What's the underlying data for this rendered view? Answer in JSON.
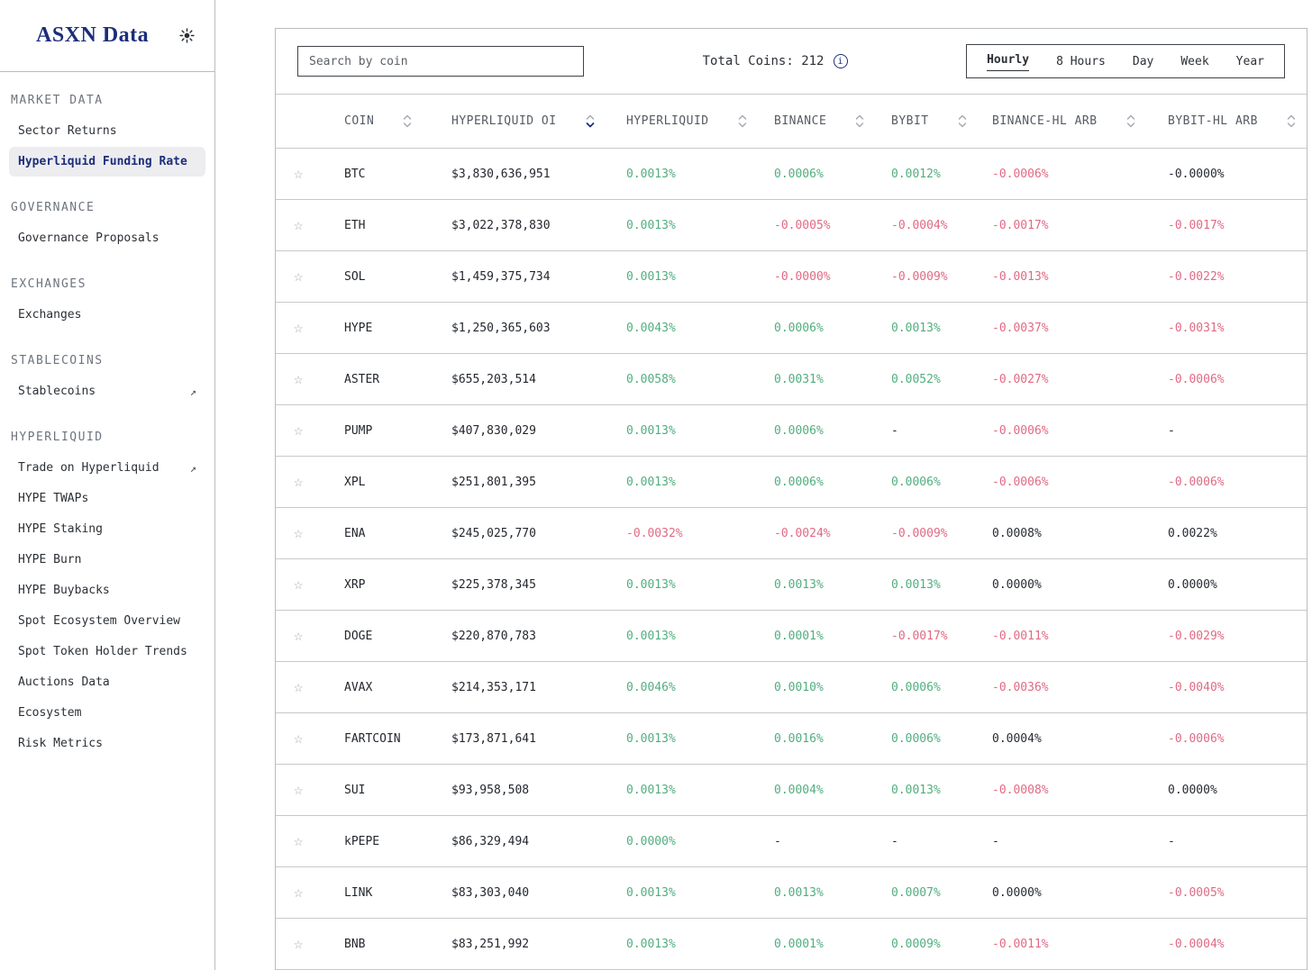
{
  "sidebar": {
    "logo": "ASXN Data",
    "theme_icon": "sun-icon",
    "sections": [
      {
        "label": "MARKET DATA",
        "items": [
          {
            "label": "Sector Returns",
            "active": false,
            "external": false
          },
          {
            "label": "Hyperliquid Funding Rate",
            "active": true,
            "external": false
          }
        ]
      },
      {
        "label": "GOVERNANCE",
        "items": [
          {
            "label": "Governance Proposals",
            "active": false,
            "external": false
          }
        ]
      },
      {
        "label": "EXCHANGES",
        "items": [
          {
            "label": "Exchanges",
            "active": false,
            "external": false
          }
        ]
      },
      {
        "label": "STABLECOINS",
        "items": [
          {
            "label": "Stablecoins",
            "active": false,
            "external": true
          }
        ]
      },
      {
        "label": "HYPERLIQUID",
        "items": [
          {
            "label": "Trade on Hyperliquid",
            "active": false,
            "external": true
          },
          {
            "label": "HYPE TWAPs",
            "active": false,
            "external": false
          },
          {
            "label": "HYPE Staking",
            "active": false,
            "external": false
          },
          {
            "label": "HYPE Burn",
            "active": false,
            "external": false
          },
          {
            "label": "HYPE Buybacks",
            "active": false,
            "external": false
          },
          {
            "label": "Spot Ecosystem Overview",
            "active": false,
            "external": false
          },
          {
            "label": "Spot Token Holder Trends",
            "active": false,
            "external": false
          },
          {
            "label": "Auctions Data",
            "active": false,
            "external": false
          },
          {
            "label": "Ecosystem",
            "active": false,
            "external": false
          },
          {
            "label": "Risk Metrics",
            "active": false,
            "external": false
          }
        ]
      }
    ]
  },
  "toolbar": {
    "search_placeholder": "Search by coin",
    "total_coins_label": "Total Coins:",
    "total_coins_value": "212",
    "info_icon": "i",
    "tabs": [
      "Hourly",
      "8 Hours",
      "Day",
      "Week",
      "Year"
    ],
    "active_tab": "Hourly"
  },
  "table": {
    "columns": [
      "COIN",
      "HYPERLIQUID OI",
      "HYPERLIQUID",
      "BINANCE",
      "BYBIT",
      "BINANCE-HL ARB",
      "BYBIT-HL ARB"
    ],
    "sorted_column": "HYPERLIQUID OI",
    "sort_direction": "desc",
    "rows": [
      {
        "coin": "BTC",
        "oi": "$3,830,636,951",
        "hl": "0.0013%",
        "hl_c": "pos",
        "bn": "0.0006%",
        "bn_c": "pos",
        "by": "0.0012%",
        "by_c": "pos",
        "ba": "-0.0006%",
        "ba_c": "neg",
        "ya": "-0.0000%",
        "ya_c": "neu"
      },
      {
        "coin": "ETH",
        "oi": "$3,022,378,830",
        "hl": "0.0013%",
        "hl_c": "pos",
        "bn": "-0.0005%",
        "bn_c": "neg",
        "by": "-0.0004%",
        "by_c": "neg",
        "ba": "-0.0017%",
        "ba_c": "neg",
        "ya": "-0.0017%",
        "ya_c": "neg"
      },
      {
        "coin": "SOL",
        "oi": "$1,459,375,734",
        "hl": "0.0013%",
        "hl_c": "pos",
        "bn": "-0.0000%",
        "bn_c": "neg",
        "by": "-0.0009%",
        "by_c": "neg",
        "ba": "-0.0013%",
        "ba_c": "neg",
        "ya": "-0.0022%",
        "ya_c": "neg"
      },
      {
        "coin": "HYPE",
        "oi": "$1,250,365,603",
        "hl": "0.0043%",
        "hl_c": "pos",
        "bn": "0.0006%",
        "bn_c": "pos",
        "by": "0.0013%",
        "by_c": "pos",
        "ba": "-0.0037%",
        "ba_c": "neg",
        "ya": "-0.0031%",
        "ya_c": "neg"
      },
      {
        "coin": "ASTER",
        "oi": "$655,203,514",
        "hl": "0.0058%",
        "hl_c": "pos",
        "bn": "0.0031%",
        "bn_c": "pos",
        "by": "0.0052%",
        "by_c": "pos",
        "ba": "-0.0027%",
        "ba_c": "neg",
        "ya": "-0.0006%",
        "ya_c": "neg"
      },
      {
        "coin": "PUMP",
        "oi": "$407,830,029",
        "hl": "0.0013%",
        "hl_c": "pos",
        "bn": "0.0006%",
        "bn_c": "pos",
        "by": "-",
        "by_c": "neu",
        "ba": "-0.0006%",
        "ba_c": "neg",
        "ya": "-",
        "ya_c": "neu"
      },
      {
        "coin": "XPL",
        "oi": "$251,801,395",
        "hl": "0.0013%",
        "hl_c": "pos",
        "bn": "0.0006%",
        "bn_c": "pos",
        "by": "0.0006%",
        "by_c": "pos",
        "ba": "-0.0006%",
        "ba_c": "neg",
        "ya": "-0.0006%",
        "ya_c": "neg"
      },
      {
        "coin": "ENA",
        "oi": "$245,025,770",
        "hl": "-0.0032%",
        "hl_c": "neg",
        "bn": "-0.0024%",
        "bn_c": "neg",
        "by": "-0.0009%",
        "by_c": "neg",
        "ba": "0.0008%",
        "ba_c": "neu",
        "ya": "0.0022%",
        "ya_c": "neu"
      },
      {
        "coin": "XRP",
        "oi": "$225,378,345",
        "hl": "0.0013%",
        "hl_c": "pos",
        "bn": "0.0013%",
        "bn_c": "pos",
        "by": "0.0013%",
        "by_c": "pos",
        "ba": "0.0000%",
        "ba_c": "neu",
        "ya": "0.0000%",
        "ya_c": "neu"
      },
      {
        "coin": "DOGE",
        "oi": "$220,870,783",
        "hl": "0.0013%",
        "hl_c": "pos",
        "bn": "0.0001%",
        "bn_c": "pos",
        "by": "-0.0017%",
        "by_c": "neg",
        "ba": "-0.0011%",
        "ba_c": "neg",
        "ya": "-0.0029%",
        "ya_c": "neg"
      },
      {
        "coin": "AVAX",
        "oi": "$214,353,171",
        "hl": "0.0046%",
        "hl_c": "pos",
        "bn": "0.0010%",
        "bn_c": "pos",
        "by": "0.0006%",
        "by_c": "pos",
        "ba": "-0.0036%",
        "ba_c": "neg",
        "ya": "-0.0040%",
        "ya_c": "neg"
      },
      {
        "coin": "FARTCOIN",
        "oi": "$173,871,641",
        "hl": "0.0013%",
        "hl_c": "pos",
        "bn": "0.0016%",
        "bn_c": "pos",
        "by": "0.0006%",
        "by_c": "pos",
        "ba": "0.0004%",
        "ba_c": "neu",
        "ya": "-0.0006%",
        "ya_c": "neg"
      },
      {
        "coin": "SUI",
        "oi": "$93,958,508",
        "hl": "0.0013%",
        "hl_c": "pos",
        "bn": "0.0004%",
        "bn_c": "pos",
        "by": "0.0013%",
        "by_c": "pos",
        "ba": "-0.0008%",
        "ba_c": "neg",
        "ya": "0.0000%",
        "ya_c": "neu"
      },
      {
        "coin": "kPEPE",
        "oi": "$86,329,494",
        "hl": "0.0000%",
        "hl_c": "pos",
        "bn": "-",
        "bn_c": "neu",
        "by": "-",
        "by_c": "neu",
        "ba": "-",
        "ba_c": "neu",
        "ya": "-",
        "ya_c": "neu"
      },
      {
        "coin": "LINK",
        "oi": "$83,303,040",
        "hl": "0.0013%",
        "hl_c": "pos",
        "bn": "0.0013%",
        "bn_c": "pos",
        "by": "0.0007%",
        "by_c": "pos",
        "ba": "0.0000%",
        "ba_c": "neu",
        "ya": "-0.0005%",
        "ya_c": "neg"
      },
      {
        "coin": "BNB",
        "oi": "$83,251,992",
        "hl": "0.0013%",
        "hl_c": "pos",
        "bn": "0.0001%",
        "bn_c": "pos",
        "by": "0.0009%",
        "by_c": "pos",
        "ba": "-0.0011%",
        "ba_c": "neg",
        "ya": "-0.0004%",
        "ya_c": "neg"
      }
    ]
  },
  "colors": {
    "positive": "#52ae7f",
    "negative": "#e06a84",
    "neutral": "#272b33",
    "accent_navy": "#1c2e7b"
  }
}
